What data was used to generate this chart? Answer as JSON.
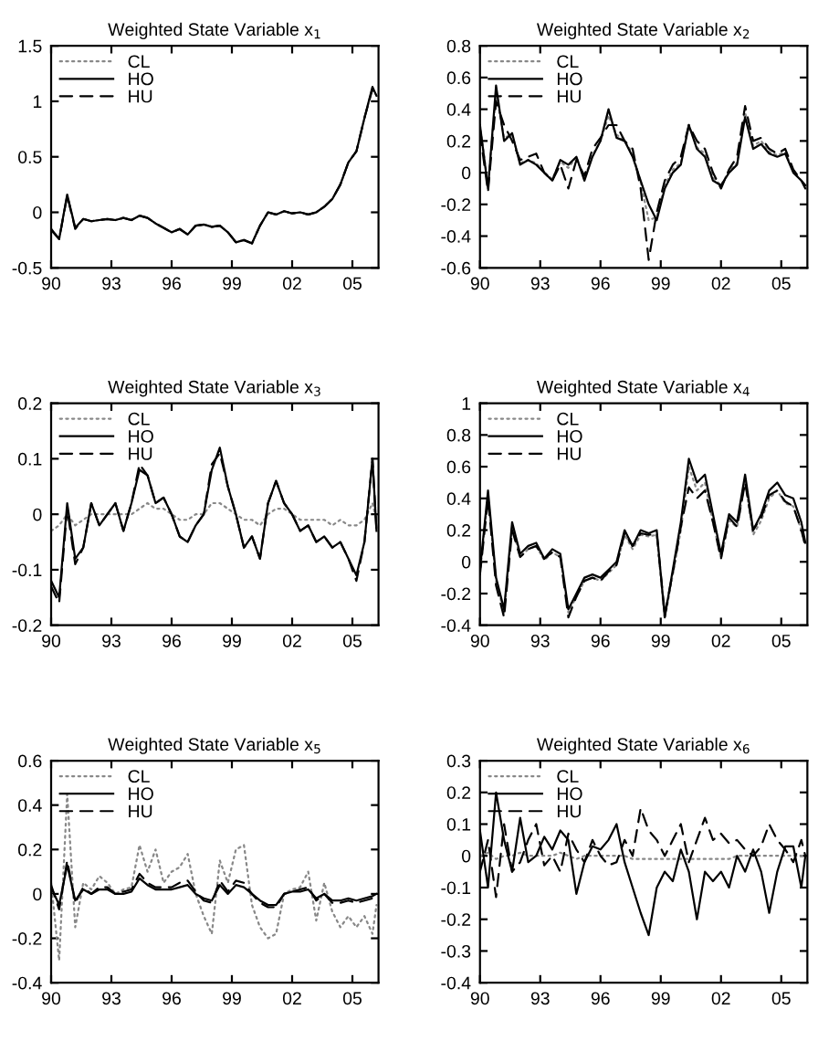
{
  "chart_data": [
    {
      "type": "line",
      "title": "Weighted State Variable x$_{1}$",
      "legend": "top left",
      "xlim": [
        1990,
        2006.3
      ],
      "ylim": [
        -0.5,
        1.5
      ],
      "xticks": [
        {
          "value": 1990,
          "label": "90"
        },
        {
          "value": 1993,
          "label": "93"
        },
        {
          "value": 1996,
          "label": "96"
        },
        {
          "value": 1999,
          "label": "99"
        },
        {
          "value": 2002,
          "label": "02"
        },
        {
          "value": 2005,
          "label": "05"
        }
      ],
      "yticks": [
        -0.5,
        0,
        0.5,
        1,
        1.5
      ],
      "x": [
        1990.0,
        1990.4,
        1990.8,
        1991.2,
        1991.6,
        1992.0,
        1992.4,
        1992.8,
        1993.2,
        1993.6,
        1994.0,
        1994.4,
        1994.8,
        1995.2,
        1995.6,
        1996.0,
        1996.4,
        1996.8,
        1997.2,
        1997.6,
        1998.0,
        1998.4,
        1998.8,
        1999.2,
        1999.6,
        2000.0,
        2000.4,
        2000.8,
        2001.2,
        2001.6,
        2002.0,
        2002.4,
        2002.8,
        2003.2,
        2003.6,
        2004.0,
        2004.4,
        2004.8,
        2005.2,
        2005.6,
        2006.0,
        2006.2
      ],
      "series": [
        {
          "name": "CL",
          "color": "#888888",
          "line_style": "dotted",
          "values": [
            -0.15,
            -0.24,
            0.15,
            -0.14,
            -0.06,
            -0.08,
            -0.07,
            -0.06,
            -0.07,
            -0.05,
            -0.07,
            -0.03,
            -0.05,
            -0.1,
            -0.14,
            -0.18,
            -0.15,
            -0.2,
            -0.12,
            -0.11,
            -0.13,
            -0.12,
            -0.18,
            -0.27,
            -0.25,
            -0.28,
            -0.12,
            0.0,
            -0.02,
            0.01,
            -0.01,
            0.0,
            -0.02,
            0.0,
            0.05,
            0.12,
            0.25,
            0.45,
            0.55,
            0.85,
            1.12,
            1.05
          ]
        },
        {
          "name": "HO",
          "color": "#000000",
          "line_style": "solid",
          "values": [
            -0.15,
            -0.24,
            0.16,
            -0.14,
            -0.06,
            -0.08,
            -0.07,
            -0.06,
            -0.07,
            -0.05,
            -0.07,
            -0.03,
            -0.05,
            -0.1,
            -0.14,
            -0.18,
            -0.15,
            -0.2,
            -0.12,
            -0.11,
            -0.13,
            -0.12,
            -0.18,
            -0.27,
            -0.25,
            -0.28,
            -0.12,
            0.0,
            -0.02,
            0.01,
            -0.01,
            0.0,
            -0.02,
            0.0,
            0.05,
            0.12,
            0.25,
            0.45,
            0.55,
            0.85,
            1.13,
            1.05
          ]
        },
        {
          "name": "HU",
          "color": "#000000",
          "line_style": "dashed",
          "values": [
            -0.16,
            -0.24,
            0.15,
            -0.15,
            -0.06,
            -0.08,
            -0.07,
            -0.06,
            -0.07,
            -0.05,
            -0.07,
            -0.03,
            -0.05,
            -0.1,
            -0.14,
            -0.18,
            -0.15,
            -0.2,
            -0.12,
            -0.11,
            -0.13,
            -0.12,
            -0.18,
            -0.27,
            -0.25,
            -0.28,
            -0.12,
            0.0,
            -0.02,
            0.01,
            -0.01,
            0.0,
            -0.02,
            0.0,
            0.05,
            0.12,
            0.25,
            0.45,
            0.55,
            0.85,
            1.11,
            1.04
          ]
        }
      ]
    },
    {
      "type": "line",
      "title": "Weighted State Variable x$_{2}$",
      "legend": "top left",
      "xlim": [
        1990,
        2006.3
      ],
      "ylim": [
        -0.6,
        0.8
      ],
      "xticks": [
        {
          "value": 1990,
          "label": "90"
        },
        {
          "value": 1993,
          "label": "93"
        },
        {
          "value": 1996,
          "label": "96"
        },
        {
          "value": 1999,
          "label": "99"
        },
        {
          "value": 2002,
          "label": "02"
        },
        {
          "value": 2005,
          "label": "05"
        }
      ],
      "yticks": [
        -0.6,
        -0.4,
        -0.2,
        0,
        0.2,
        0.4,
        0.6,
        0.8
      ],
      "x": [
        1990.0,
        1990.4,
        1990.8,
        1991.2,
        1991.6,
        1992.0,
        1992.4,
        1992.8,
        1993.2,
        1993.6,
        1994.0,
        1994.4,
        1994.8,
        1995.2,
        1995.6,
        1996.0,
        1996.4,
        1996.8,
        1997.2,
        1997.6,
        1998.0,
        1998.4,
        1998.8,
        1999.2,
        1999.6,
        2000.0,
        2000.4,
        2000.8,
        2001.2,
        2001.6,
        2002.0,
        2002.4,
        2002.8,
        2003.2,
        2003.6,
        2004.0,
        2004.4,
        2004.8,
        2005.2,
        2005.6,
        2006.0,
        2006.2
      ],
      "series": [
        {
          "name": "CL",
          "color": "#888888",
          "line_style": "dotted",
          "values": [
            0.3,
            -0.08,
            0.5,
            0.22,
            0.24,
            0.06,
            0.08,
            0.06,
            0.0,
            -0.04,
            0.07,
            0.03,
            0.1,
            -0.04,
            0.11,
            0.2,
            0.36,
            0.24,
            0.2,
            0.12,
            -0.06,
            -0.3,
            -0.28,
            -0.08,
            0.02,
            0.06,
            0.3,
            0.16,
            0.12,
            -0.03,
            -0.08,
            0.01,
            0.06,
            0.38,
            0.17,
            0.2,
            0.13,
            0.11,
            0.13,
            0.01,
            -0.05,
            -0.09
          ]
        },
        {
          "name": "HO",
          "color": "#000000",
          "line_style": "solid",
          "values": [
            0.3,
            -0.1,
            0.55,
            0.2,
            0.25,
            0.05,
            0.08,
            0.05,
            0.0,
            -0.05,
            0.08,
            0.05,
            0.1,
            -0.05,
            0.1,
            0.2,
            0.4,
            0.22,
            0.2,
            0.1,
            -0.05,
            -0.2,
            -0.3,
            -0.1,
            0.0,
            0.05,
            0.3,
            0.15,
            0.1,
            -0.05,
            -0.08,
            0.0,
            0.05,
            0.35,
            0.15,
            0.18,
            0.12,
            0.1,
            0.12,
            0.0,
            -0.05,
            -0.08
          ]
        },
        {
          "name": "HU",
          "color": "#000000",
          "line_style": "dashed",
          "values": [
            0.25,
            -0.12,
            0.45,
            0.3,
            0.2,
            0.08,
            0.1,
            0.12,
            0.0,
            -0.05,
            0.05,
            -0.1,
            0.08,
            -0.02,
            0.15,
            0.22,
            0.3,
            0.3,
            0.2,
            0.15,
            -0.1,
            -0.55,
            -0.25,
            -0.05,
            0.05,
            0.1,
            0.3,
            0.2,
            0.15,
            0.0,
            -0.1,
            0.02,
            0.1,
            0.42,
            0.2,
            0.22,
            0.15,
            0.12,
            0.15,
            0.02,
            -0.05,
            -0.1
          ]
        }
      ]
    },
    {
      "type": "line",
      "title": "Weighted State Variable x$_{3}$",
      "legend": "top left",
      "xlim": [
        1990,
        2006.3
      ],
      "ylim": [
        -0.2,
        0.2
      ],
      "xticks": [
        {
          "value": 1990,
          "label": "90"
        },
        {
          "value": 1993,
          "label": "93"
        },
        {
          "value": 1996,
          "label": "96"
        },
        {
          "value": 1999,
          "label": "99"
        },
        {
          "value": 2002,
          "label": "02"
        },
        {
          "value": 2005,
          "label": "05"
        }
      ],
      "yticks": [
        -0.2,
        -0.1,
        0,
        0.1,
        0.2
      ],
      "x": [
        1990.0,
        1990.4,
        1990.8,
        1991.2,
        1991.6,
        1992.0,
        1992.4,
        1992.8,
        1993.2,
        1993.6,
        1994.0,
        1994.4,
        1994.8,
        1995.2,
        1995.6,
        1996.0,
        1996.4,
        1996.8,
        1997.2,
        1997.6,
        1998.0,
        1998.4,
        1998.8,
        1999.2,
        1999.6,
        2000.0,
        2000.4,
        2000.8,
        2001.2,
        2001.6,
        2002.0,
        2002.4,
        2002.8,
        2003.2,
        2003.6,
        2004.0,
        2004.4,
        2004.8,
        2005.2,
        2005.6,
        2006.0,
        2006.2
      ],
      "series": [
        {
          "name": "CL",
          "color": "#888888",
          "line_style": "dotted",
          "values": [
            -0.03,
            -0.02,
            0.0,
            -0.02,
            -0.01,
            0.0,
            0.0,
            0.0,
            0.0,
            0.0,
            0.0,
            0.01,
            0.02,
            0.01,
            0.01,
            0.0,
            -0.01,
            -0.01,
            0.0,
            0.0,
            0.02,
            0.02,
            0.01,
            0.0,
            -0.01,
            -0.01,
            -0.02,
            0.0,
            0.01,
            0.01,
            0.0,
            -0.01,
            -0.01,
            -0.01,
            -0.01,
            -0.02,
            -0.01,
            -0.02,
            -0.02,
            -0.01,
            0.02,
            -0.01
          ]
        },
        {
          "name": "HO",
          "color": "#000000",
          "line_style": "solid",
          "values": [
            -0.12,
            -0.15,
            0.02,
            -0.08,
            -0.06,
            0.02,
            -0.02,
            0.0,
            0.02,
            -0.03,
            0.02,
            0.08,
            0.07,
            0.02,
            0.03,
            0.0,
            -0.04,
            -0.05,
            -0.02,
            0.0,
            0.08,
            0.12,
            0.05,
            0.0,
            -0.06,
            -0.04,
            -0.08,
            0.02,
            0.06,
            0.02,
            0.0,
            -0.03,
            -0.02,
            -0.05,
            -0.04,
            -0.06,
            -0.05,
            -0.08,
            -0.11,
            -0.05,
            0.1,
            -0.03
          ]
        },
        {
          "name": "HU",
          "color": "#000000",
          "line_style": "dashed",
          "values": [
            -0.13,
            -0.16,
            0.01,
            -0.09,
            -0.06,
            0.02,
            -0.02,
            0.0,
            0.02,
            -0.03,
            0.02,
            0.09,
            0.07,
            0.02,
            0.03,
            0.0,
            -0.04,
            -0.05,
            -0.02,
            0.0,
            0.09,
            0.11,
            0.05,
            0.0,
            -0.06,
            -0.04,
            -0.08,
            0.02,
            0.06,
            0.02,
            0.0,
            -0.03,
            -0.02,
            -0.05,
            -0.04,
            -0.06,
            -0.05,
            -0.08,
            -0.12,
            -0.05,
            0.1,
            -0.03
          ]
        }
      ]
    },
    {
      "type": "line",
      "title": "Weighted State Variable x$_{4}$",
      "legend": "top left",
      "xlim": [
        1990,
        2006.3
      ],
      "ylim": [
        -0.4,
        1
      ],
      "xticks": [
        {
          "value": 1990,
          "label": "90"
        },
        {
          "value": 1993,
          "label": "93"
        },
        {
          "value": 1996,
          "label": "96"
        },
        {
          "value": 1999,
          "label": "99"
        },
        {
          "value": 2002,
          "label": "02"
        },
        {
          "value": 2005,
          "label": "05"
        }
      ],
      "yticks": [
        -0.4,
        -0.2,
        0,
        0.2,
        0.4,
        0.6,
        0.8,
        1
      ],
      "x": [
        1990.0,
        1990.4,
        1990.8,
        1991.2,
        1991.6,
        1992.0,
        1992.4,
        1992.8,
        1993.2,
        1993.6,
        1994.0,
        1994.4,
        1994.8,
        1995.2,
        1995.6,
        1996.0,
        1996.4,
        1996.8,
        1997.2,
        1997.6,
        1998.0,
        1998.4,
        1998.8,
        1999.2,
        1999.6,
        2000.0,
        2000.4,
        2000.8,
        2001.2,
        2001.6,
        2002.0,
        2002.4,
        2002.8,
        2003.2,
        2003.6,
        2004.0,
        2004.4,
        2004.8,
        2005.2,
        2005.6,
        2006.0,
        2006.2
      ],
      "series": [
        {
          "name": "CL",
          "color": "#888888",
          "line_style": "dotted",
          "values": [
            -0.07,
            0.42,
            -0.12,
            -0.32,
            0.22,
            0.03,
            0.08,
            0.1,
            0.01,
            0.06,
            0.03,
            -0.32,
            -0.22,
            -0.12,
            -0.1,
            -0.12,
            -0.07,
            -0.02,
            0.17,
            0.08,
            0.17,
            0.16,
            0.17,
            -0.36,
            -0.08,
            0.2,
            0.6,
            0.45,
            0.5,
            0.25,
            0.02,
            0.26,
            0.22,
            0.5,
            0.17,
            0.26,
            0.4,
            0.45,
            0.37,
            0.35,
            0.2,
            0.1
          ]
        },
        {
          "name": "HO",
          "color": "#000000",
          "line_style": "solid",
          "values": [
            -0.05,
            0.45,
            -0.1,
            -0.3,
            0.25,
            0.05,
            0.1,
            0.12,
            0.02,
            0.08,
            0.05,
            -0.3,
            -0.2,
            -0.1,
            -0.08,
            -0.1,
            -0.05,
            0.0,
            0.2,
            0.1,
            0.2,
            0.18,
            0.2,
            -0.35,
            -0.05,
            0.25,
            0.65,
            0.5,
            0.55,
            0.3,
            0.05,
            0.3,
            0.25,
            0.55,
            0.2,
            0.3,
            0.45,
            0.5,
            0.42,
            0.4,
            0.25,
            0.12
          ]
        },
        {
          "name": "HU",
          "color": "#000000",
          "line_style": "dashed",
          "values": [
            -0.08,
            0.4,
            -0.15,
            -0.35,
            0.2,
            0.03,
            0.08,
            0.1,
            0.02,
            0.06,
            0.03,
            -0.35,
            -0.22,
            -0.12,
            -0.1,
            -0.12,
            -0.06,
            -0.02,
            0.18,
            0.1,
            0.18,
            0.17,
            0.18,
            -0.33,
            -0.07,
            0.22,
            0.47,
            0.4,
            0.45,
            0.25,
            0.02,
            0.28,
            0.22,
            0.5,
            0.2,
            0.28,
            0.42,
            0.45,
            0.38,
            0.35,
            0.2,
            0.1
          ]
        }
      ]
    },
    {
      "type": "line",
      "title": "Weighted State Variable x$_{5}$",
      "legend": "top left",
      "xlim": [
        1990,
        2006.3
      ],
      "ylim": [
        -0.4,
        0.6
      ],
      "xticks": [
        {
          "value": 1990,
          "label": "90"
        },
        {
          "value": 1993,
          "label": "93"
        },
        {
          "value": 1996,
          "label": "96"
        },
        {
          "value": 1999,
          "label": "99"
        },
        {
          "value": 2002,
          "label": "02"
        },
        {
          "value": 2005,
          "label": "05"
        }
      ],
      "yticks": [
        -0.4,
        -0.2,
        0,
        0.2,
        0.4,
        0.6
      ],
      "x": [
        1990.0,
        1990.4,
        1990.8,
        1991.2,
        1991.6,
        1992.0,
        1992.4,
        1992.8,
        1993.2,
        1993.6,
        1994.0,
        1994.4,
        1994.8,
        1995.2,
        1995.6,
        1996.0,
        1996.4,
        1996.8,
        1997.2,
        1997.6,
        1998.0,
        1998.4,
        1998.8,
        1999.2,
        1999.6,
        2000.0,
        2000.4,
        2000.8,
        2001.2,
        2001.6,
        2002.0,
        2002.4,
        2002.8,
        2003.2,
        2003.6,
        2004.0,
        2004.4,
        2004.8,
        2005.2,
        2005.6,
        2006.0,
        2006.2
      ],
      "series": [
        {
          "name": "CL",
          "color": "#888888",
          "line_style": "dotted",
          "values": [
            0.05,
            -0.3,
            0.45,
            -0.15,
            0.05,
            0.02,
            0.08,
            0.05,
            0.0,
            0.02,
            0.03,
            0.22,
            0.1,
            0.2,
            0.05,
            0.1,
            0.12,
            0.18,
            0.0,
            -0.1,
            -0.18,
            0.15,
            0.05,
            0.2,
            0.22,
            -0.05,
            -0.15,
            -0.2,
            -0.18,
            0.0,
            0.02,
            0.03,
            0.1,
            -0.12,
            0.05,
            -0.08,
            -0.15,
            -0.1,
            -0.15,
            -0.1,
            -0.18,
            -0.05
          ]
        },
        {
          "name": "HO",
          "color": "#000000",
          "line_style": "solid",
          "values": [
            0.03,
            -0.05,
            0.13,
            -0.03,
            0.02,
            0.0,
            0.02,
            0.02,
            0.0,
            0.0,
            0.01,
            0.07,
            0.04,
            0.02,
            0.02,
            0.02,
            0.03,
            0.04,
            0.0,
            -0.02,
            -0.03,
            0.04,
            0.0,
            0.04,
            0.03,
            0.0,
            -0.03,
            -0.05,
            -0.05,
            0.0,
            0.01,
            0.01,
            0.02,
            -0.02,
            0.0,
            -0.03,
            -0.03,
            -0.02,
            -0.03,
            -0.02,
            -0.01,
            0.0
          ]
        },
        {
          "name": "HU",
          "color": "#000000",
          "line_style": "dashed",
          "values": [
            0.04,
            -0.07,
            0.15,
            -0.04,
            0.03,
            0.0,
            0.03,
            0.03,
            0.0,
            0.01,
            0.02,
            0.09,
            0.05,
            0.03,
            0.03,
            0.03,
            0.05,
            0.06,
            0.01,
            -0.03,
            -0.04,
            0.06,
            0.01,
            0.06,
            0.05,
            0.0,
            -0.04,
            -0.06,
            -0.06,
            0.0,
            0.01,
            0.02,
            0.03,
            -0.03,
            0.0,
            -0.04,
            -0.04,
            -0.03,
            -0.04,
            -0.03,
            -0.02,
            -0.01
          ]
        }
      ]
    },
    {
      "type": "line",
      "title": "Weighted State Variable x$_{6}$",
      "legend": "top left",
      "xlim": [
        1990,
        2006.3
      ],
      "ylim": [
        -0.4,
        0.3
      ],
      "xticks": [
        {
          "value": 1990,
          "label": "90"
        },
        {
          "value": 1993,
          "label": "93"
        },
        {
          "value": 1996,
          "label": "96"
        },
        {
          "value": 1999,
          "label": "99"
        },
        {
          "value": 2002,
          "label": "02"
        },
        {
          "value": 2005,
          "label": "05"
        }
      ],
      "yticks": [
        -0.4,
        -0.3,
        -0.2,
        -0.1,
        0,
        0.1,
        0.2,
        0.3
      ],
      "x": [
        1990.0,
        1990.4,
        1990.8,
        1991.2,
        1991.6,
        1992.0,
        1992.4,
        1992.8,
        1993.2,
        1993.6,
        1994.0,
        1994.4,
        1994.8,
        1995.2,
        1995.6,
        1996.0,
        1996.4,
        1996.8,
        1997.2,
        1997.6,
        1998.0,
        1998.4,
        1998.8,
        1999.2,
        1999.6,
        2000.0,
        2000.4,
        2000.8,
        2001.2,
        2001.6,
        2002.0,
        2002.4,
        2002.8,
        2003.2,
        2003.6,
        2004.0,
        2004.4,
        2004.8,
        2005.2,
        2005.6,
        2006.0,
        2006.2
      ],
      "series": [
        {
          "name": "CL",
          "color": "#888888",
          "line_style": "dotted",
          "values": [
            0.0,
            0.01,
            -0.01,
            0.0,
            0.0,
            0.01,
            0.0,
            0.0,
            0.0,
            0.0,
            0.01,
            0.0,
            -0.01,
            0.0,
            0.0,
            0.0,
            0.0,
            0.0,
            0.0,
            -0.01,
            -0.01,
            -0.01,
            -0.01,
            -0.01,
            -0.01,
            -0.01,
            -0.01,
            -0.01,
            -0.01,
            -0.01,
            -0.01,
            -0.01,
            0.0,
            0.0,
            0.0,
            0.0,
            0.0,
            0.0,
            0.0,
            0.0,
            0.0,
            0.0
          ]
        },
        {
          "name": "HO",
          "color": "#000000",
          "line_style": "solid",
          "values": [
            0.08,
            -0.1,
            0.2,
            0.05,
            -0.05,
            0.12,
            -0.02,
            0.0,
            0.06,
            0.02,
            0.08,
            0.05,
            -0.12,
            -0.02,
            0.03,
            0.02,
            0.05,
            0.1,
            -0.02,
            -0.1,
            -0.18,
            -0.25,
            -0.1,
            -0.05,
            -0.08,
            0.02,
            -0.05,
            -0.2,
            -0.05,
            -0.08,
            -0.05,
            -0.1,
            0.0,
            -0.05,
            0.02,
            -0.05,
            -0.18,
            -0.05,
            0.03,
            0.03,
            -0.1,
            0.0
          ]
        },
        {
          "name": "HU",
          "color": "#000000",
          "line_style": "dashed",
          "values": [
            -0.05,
            0.05,
            -0.13,
            0.1,
            -0.05,
            -0.02,
            0.05,
            0.1,
            -0.03,
            0.0,
            -0.05,
            0.07,
            0.02,
            -0.02,
            0.05,
            0.0,
            -0.03,
            -0.02,
            0.05,
            0.0,
            0.15,
            0.08,
            0.05,
            0.0,
            0.05,
            0.1,
            -0.02,
            0.05,
            0.12,
            0.05,
            0.07,
            0.04,
            0.05,
            0.02,
            0.0,
            0.03,
            0.1,
            0.05,
            0.02,
            -0.02,
            0.05,
            0.0
          ]
        }
      ]
    }
  ]
}
